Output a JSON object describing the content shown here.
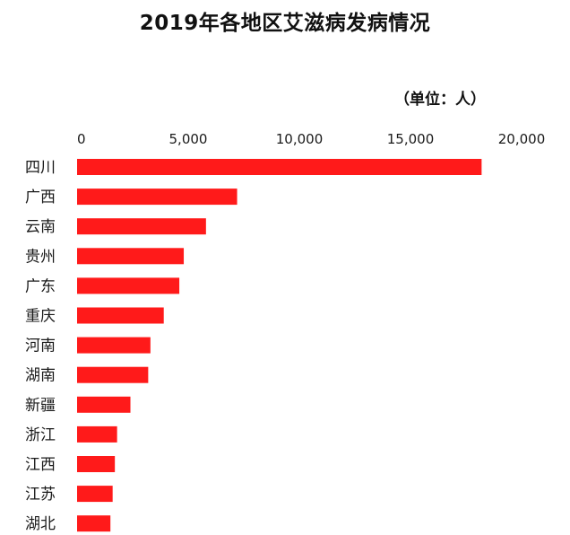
{
  "chart_data": {
    "type": "bar",
    "orientation": "horizontal",
    "title": "2019年各地区艾滋病发病情况",
    "unit_label": "（单位：人）",
    "xlim": [
      0,
      20000
    ],
    "x_ticks": [
      "0",
      "5,000",
      "10,000",
      "15,000",
      "20,000"
    ],
    "tick_values": [
      0,
      5000,
      10000,
      15000,
      20000
    ],
    "axis_position": "top",
    "grid": false,
    "bar_color": "#ff1a1a",
    "categories": [
      "四川",
      "广西",
      "云南",
      "贵州",
      "广东",
      "重庆",
      "河南",
      "湖南",
      "新疆",
      "浙江",
      "江西",
      "江苏",
      "湖北"
    ],
    "values": [
      18200,
      7200,
      5800,
      4800,
      4600,
      3900,
      3300,
      3200,
      2400,
      1800,
      1700,
      1600,
      1500
    ]
  }
}
